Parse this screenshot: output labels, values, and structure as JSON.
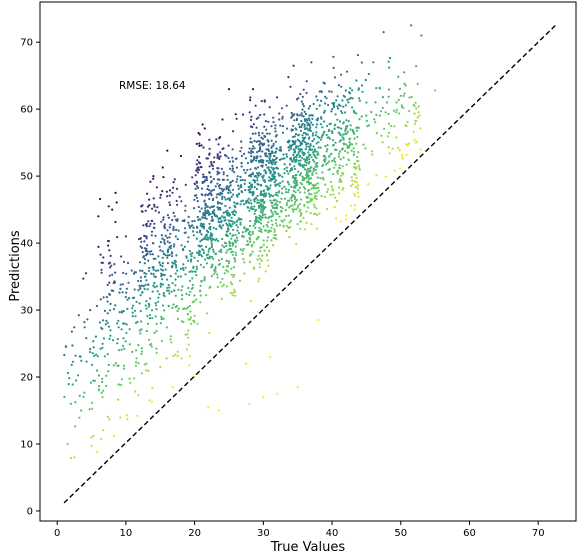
{
  "chart_data": {
    "type": "scatter",
    "title": "",
    "xlabel": "True Values",
    "ylabel": "Predictions",
    "xlim": [
      -2.5,
      75.5
    ],
    "ylim": [
      -1.5,
      76.0
    ],
    "xticks": [
      0,
      10,
      20,
      30,
      40,
      50,
      60,
      70
    ],
    "yticks": [
      0,
      10,
      20,
      30,
      40,
      50,
      60,
      70
    ],
    "xtick_labels": [
      "0",
      "10",
      "20",
      "30",
      "40",
      "50",
      "60",
      "70"
    ],
    "ytick_labels": [
      "0",
      "10",
      "20",
      "30",
      "40",
      "50",
      "60",
      "70"
    ],
    "grid": false,
    "annotation": "RMSE: 18.64",
    "annotation_position": [
      9,
      63
    ],
    "reference_line": {
      "x": [
        1.0,
        72.5
      ],
      "y": [
        1.2,
        72.5
      ],
      "style": "dashed",
      "color": "#000000"
    },
    "colormap": "viridis",
    "color_scale": "color varies with predicted minus true value: dark purple for the largest errors, yellow for the smallest",
    "clusters": [
      {
        "x_range": [
          1,
          14
        ],
        "y_range": [
          7,
          36
        ],
        "count": 120
      },
      {
        "x_range": [
          6,
          20
        ],
        "y_range": [
          15,
          48
        ],
        "count": 260
      },
      {
        "x_range": [
          12,
          26
        ],
        "y_range": [
          25,
          55
        ],
        "count": 420
      },
      {
        "x_range": [
          20,
          32
        ],
        "y_range": [
          30,
          62
        ],
        "count": 620
      },
      {
        "x_range": [
          28,
          38
        ],
        "y_range": [
          36,
          66
        ],
        "count": 560
      },
      {
        "x_range": [
          34,
          44
        ],
        "y_range": [
          40,
          68
        ],
        "count": 420
      },
      {
        "x_range": [
          40,
          53
        ],
        "y_range": [
          46,
          72
        ],
        "count": 140
      }
    ],
    "points": [
      [
        1.5,
        10.0
      ],
      [
        2.0,
        7.9
      ],
      [
        2.5,
        8.0
      ],
      [
        2.0,
        16.0
      ],
      [
        3.5,
        15.0
      ],
      [
        3.8,
        34.7
      ],
      [
        4.2,
        35.5
      ],
      [
        4.8,
        30.0
      ],
      [
        5.0,
        11.0
      ],
      [
        5.3,
        11.2
      ],
      [
        6.0,
        44.0
      ],
      [
        7.5,
        45.5
      ],
      [
        8.0,
        45.0
      ],
      [
        8.5,
        47.5
      ],
      [
        9.0,
        24.0
      ],
      [
        10.0,
        41.0
      ],
      [
        12.0,
        31.0
      ],
      [
        13.0,
        22.0
      ],
      [
        14.0,
        50.0
      ],
      [
        15.0,
        21.5
      ],
      [
        16.0,
        47.0
      ],
      [
        18.0,
        53.0
      ],
      [
        20.0,
        20.0
      ],
      [
        22.0,
        15.5
      ],
      [
        23.5,
        15.0
      ],
      [
        25.0,
        63.0
      ],
      [
        27.5,
        22.0
      ],
      [
        28.0,
        16.0
      ],
      [
        28.5,
        63.0
      ],
      [
        30.0,
        17.0
      ],
      [
        31.0,
        23.0
      ],
      [
        32.0,
        17.5
      ],
      [
        35.0,
        18.5
      ],
      [
        37.0,
        67.0
      ],
      [
        38.0,
        28.5
      ],
      [
        40.0,
        60.0
      ],
      [
        42.0,
        57.0
      ],
      [
        44.0,
        58.5
      ],
      [
        45.0,
        61.0
      ],
      [
        46.0,
        67.0
      ],
      [
        47.5,
        71.5
      ],
      [
        48.0,
        61.0
      ],
      [
        50.0,
        62.0
      ],
      [
        50.5,
        65.5
      ],
      [
        51.5,
        72.5
      ],
      [
        52.0,
        60.5
      ],
      [
        53.0,
        71.0
      ],
      [
        55.0,
        62.8
      ]
    ]
  }
}
